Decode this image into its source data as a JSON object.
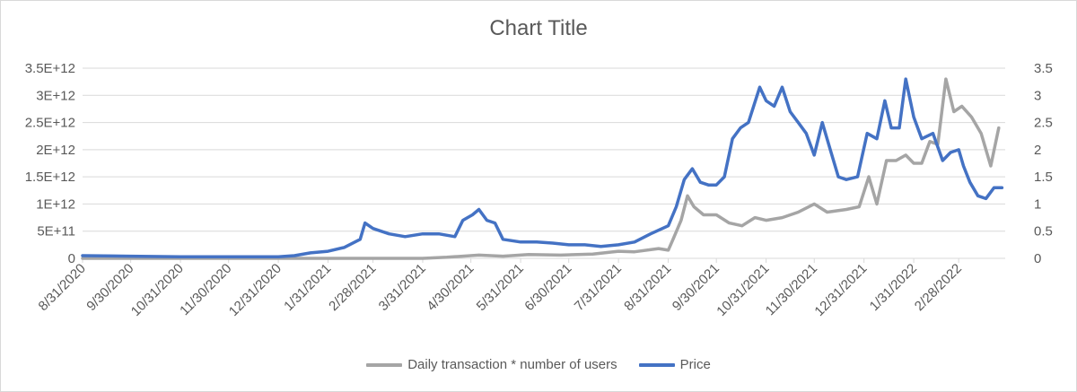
{
  "chart_data": {
    "type": "line",
    "title": "Chart Title",
    "x_tick_labels": [
      "8/31/2020",
      "9/30/2020",
      "10/31/2020",
      "11/30/2020",
      "12/31/2020",
      "1/31/2021",
      "2/28/2021",
      "3/31/2021",
      "4/30/2021",
      "5/31/2021",
      "6/30/2021",
      "7/31/2021",
      "8/31/2021",
      "9/30/2021",
      "10/31/2021",
      "11/30/2021",
      "12/31/2021",
      "1/31/2022",
      "2/28/2022"
    ],
    "y_left": {
      "range": [
        0,
        3500000000000
      ],
      "ticks": [
        "0",
        "5E+11",
        "1E+12",
        "1.5E+12",
        "2E+12",
        "2.5E+12",
        "3E+12",
        "3.5E+12"
      ]
    },
    "y_right": {
      "range": [
        0,
        3.5
      ],
      "ticks": [
        "0",
        "0.5",
        "1",
        "1.5",
        "2",
        "2.5",
        "3",
        "3.5"
      ]
    },
    "grid": true,
    "legend_position": "bottom",
    "series": [
      {
        "name": "Daily transaction * number of users",
        "axis": "left",
        "color": "#a5a5a5",
        "points": [
          [
            "2020-08-31",
            0
          ],
          [
            "2020-12-31",
            0
          ],
          [
            "2021-01-31",
            0
          ],
          [
            "2021-03-31",
            0
          ],
          [
            "2021-04-15",
            20000000000
          ],
          [
            "2021-05-05",
            60000000000
          ],
          [
            "2021-05-20",
            40000000000
          ],
          [
            "2021-06-05",
            70000000000
          ],
          [
            "2021-06-25",
            60000000000
          ],
          [
            "2021-07-15",
            80000000000
          ],
          [
            "2021-07-31",
            130000000000
          ],
          [
            "2021-08-10",
            120000000000
          ],
          [
            "2021-08-25",
            180000000000
          ],
          [
            "2021-08-31",
            150000000000
          ],
          [
            "2021-09-03",
            350000000000
          ],
          [
            "2021-09-08",
            700000000000
          ],
          [
            "2021-09-12",
            1150000000000
          ],
          [
            "2021-09-16",
            950000000000
          ],
          [
            "2021-09-22",
            800000000000
          ],
          [
            "2021-09-30",
            800000000000
          ],
          [
            "2021-10-08",
            650000000000
          ],
          [
            "2021-10-16",
            600000000000
          ],
          [
            "2021-10-24",
            750000000000
          ],
          [
            "2021-10-31",
            700000000000
          ],
          [
            "2021-11-10",
            750000000000
          ],
          [
            "2021-11-20",
            850000000000
          ],
          [
            "2021-11-30",
            1000000000000
          ],
          [
            "2021-12-08",
            850000000000
          ],
          [
            "2021-12-20",
            900000000000
          ],
          [
            "2021-12-28",
            950000000000
          ],
          [
            "2022-01-03",
            1500000000000
          ],
          [
            "2022-01-08",
            1000000000000
          ],
          [
            "2022-01-14",
            1800000000000
          ],
          [
            "2022-01-20",
            1800000000000
          ],
          [
            "2022-01-26",
            1900000000000
          ],
          [
            "2022-01-31",
            1750000000000
          ],
          [
            "2022-02-05",
            1750000000000
          ],
          [
            "2022-02-10",
            2150000000000
          ],
          [
            "2022-02-15",
            2100000000000
          ],
          [
            "2022-02-20",
            3300000000000
          ],
          [
            "2022-02-25",
            2700000000000
          ],
          [
            "2022-03-02",
            2800000000000
          ],
          [
            "2022-03-08",
            2600000000000
          ],
          [
            "2022-03-14",
            2300000000000
          ],
          [
            "2022-03-20",
            1700000000000
          ],
          [
            "2022-03-25",
            2400000000000
          ]
        ]
      },
      {
        "name": "Price",
        "axis": "right",
        "color": "#4472c4",
        "points": [
          [
            "2020-08-31",
            0.05
          ],
          [
            "2020-09-30",
            0.04
          ],
          [
            "2020-10-31",
            0.03
          ],
          [
            "2020-11-30",
            0.03
          ],
          [
            "2020-12-31",
            0.03
          ],
          [
            "2021-01-10",
            0.05
          ],
          [
            "2021-01-20",
            0.1
          ],
          [
            "2021-01-31",
            0.13
          ],
          [
            "2021-02-10",
            0.2
          ],
          [
            "2021-02-20",
            0.35
          ],
          [
            "2021-02-23",
            0.65
          ],
          [
            "2021-02-28",
            0.55
          ],
          [
            "2021-03-10",
            0.45
          ],
          [
            "2021-03-20",
            0.4
          ],
          [
            "2021-03-31",
            0.45
          ],
          [
            "2021-04-10",
            0.45
          ],
          [
            "2021-04-20",
            0.4
          ],
          [
            "2021-04-25",
            0.7
          ],
          [
            "2021-05-01",
            0.8
          ],
          [
            "2021-05-05",
            0.9
          ],
          [
            "2021-05-10",
            0.7
          ],
          [
            "2021-05-15",
            0.65
          ],
          [
            "2021-05-20",
            0.35
          ],
          [
            "2021-05-31",
            0.3
          ],
          [
            "2021-06-10",
            0.3
          ],
          [
            "2021-06-20",
            0.28
          ],
          [
            "2021-06-30",
            0.25
          ],
          [
            "2021-07-10",
            0.25
          ],
          [
            "2021-07-20",
            0.22
          ],
          [
            "2021-07-31",
            0.25
          ],
          [
            "2021-08-10",
            0.3
          ],
          [
            "2021-08-20",
            0.45
          ],
          [
            "2021-08-31",
            0.6
          ],
          [
            "2021-09-05",
            0.95
          ],
          [
            "2021-09-10",
            1.45
          ],
          [
            "2021-09-15",
            1.65
          ],
          [
            "2021-09-20",
            1.4
          ],
          [
            "2021-09-25",
            1.35
          ],
          [
            "2021-09-30",
            1.35
          ],
          [
            "2021-10-05",
            1.5
          ],
          [
            "2021-10-10",
            2.2
          ],
          [
            "2021-10-15",
            2.4
          ],
          [
            "2021-10-20",
            2.5
          ],
          [
            "2021-10-27",
            3.15
          ],
          [
            "2021-10-31",
            2.9
          ],
          [
            "2021-11-05",
            2.8
          ],
          [
            "2021-11-10",
            3.15
          ],
          [
            "2021-11-15",
            2.7
          ],
          [
            "2021-11-20",
            2.5
          ],
          [
            "2021-11-25",
            2.3
          ],
          [
            "2021-11-30",
            1.9
          ],
          [
            "2021-12-05",
            2.5
          ],
          [
            "2021-12-10",
            2.0
          ],
          [
            "2021-12-15",
            1.5
          ],
          [
            "2021-12-20",
            1.45
          ],
          [
            "2021-12-27",
            1.5
          ],
          [
            "2022-01-02",
            2.3
          ],
          [
            "2022-01-08",
            2.2
          ],
          [
            "2022-01-13",
            2.9
          ],
          [
            "2022-01-17",
            2.4
          ],
          [
            "2022-01-22",
            2.4
          ],
          [
            "2022-01-26",
            3.3
          ],
          [
            "2022-01-31",
            2.6
          ],
          [
            "2022-02-05",
            2.2
          ],
          [
            "2022-02-12",
            2.3
          ],
          [
            "2022-02-18",
            1.8
          ],
          [
            "2022-02-23",
            1.95
          ],
          [
            "2022-02-28",
            2.0
          ],
          [
            "2022-03-03",
            1.7
          ],
          [
            "2022-03-07",
            1.4
          ],
          [
            "2022-03-12",
            1.15
          ],
          [
            "2022-03-17",
            1.1
          ],
          [
            "2022-03-22",
            1.3
          ],
          [
            "2022-03-27",
            1.3
          ]
        ]
      }
    ]
  }
}
